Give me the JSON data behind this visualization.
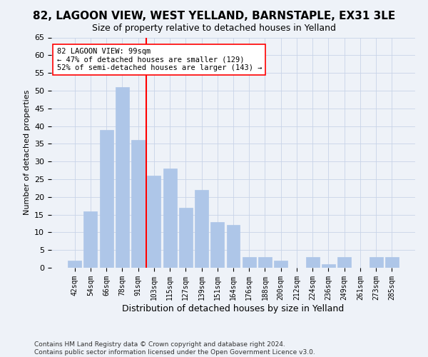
{
  "title": "82, LAGOON VIEW, WEST YELLAND, BARNSTAPLE, EX31 3LE",
  "subtitle": "Size of property relative to detached houses in Yelland",
  "xlabel": "Distribution of detached houses by size in Yelland",
  "ylabel": "Number of detached properties",
  "categories": [
    "42sqm",
    "54sqm",
    "66sqm",
    "78sqm",
    "91sqm",
    "103sqm",
    "115sqm",
    "127sqm",
    "139sqm",
    "151sqm",
    "164sqm",
    "176sqm",
    "188sqm",
    "200sqm",
    "212sqm",
    "224sqm",
    "236sqm",
    "249sqm",
    "261sqm",
    "273sqm",
    "285sqm"
  ],
  "values": [
    2,
    16,
    39,
    51,
    36,
    26,
    28,
    17,
    22,
    13,
    12,
    3,
    3,
    2,
    0,
    3,
    1,
    3,
    0,
    3,
    3
  ],
  "bar_color": "#aec6e8",
  "bar_edge_color": "#aec6e8",
  "grid_color": "#c8d4e8",
  "vline_x": 4.5,
  "vline_color": "red",
  "annotation_text": "82 LAGOON VIEW: 99sqm\n← 47% of detached houses are smaller (129)\n52% of semi-detached houses are larger (143) →",
  "annotation_box_color": "white",
  "annotation_box_edge_color": "red",
  "ylim": [
    0,
    65
  ],
  "yticks": [
    0,
    5,
    10,
    15,
    20,
    25,
    30,
    35,
    40,
    45,
    50,
    55,
    60,
    65
  ],
  "footer_line1": "Contains HM Land Registry data © Crown copyright and database right 2024.",
  "footer_line2": "Contains public sector information licensed under the Open Government Licence v3.0.",
  "background_color": "#eef2f8"
}
